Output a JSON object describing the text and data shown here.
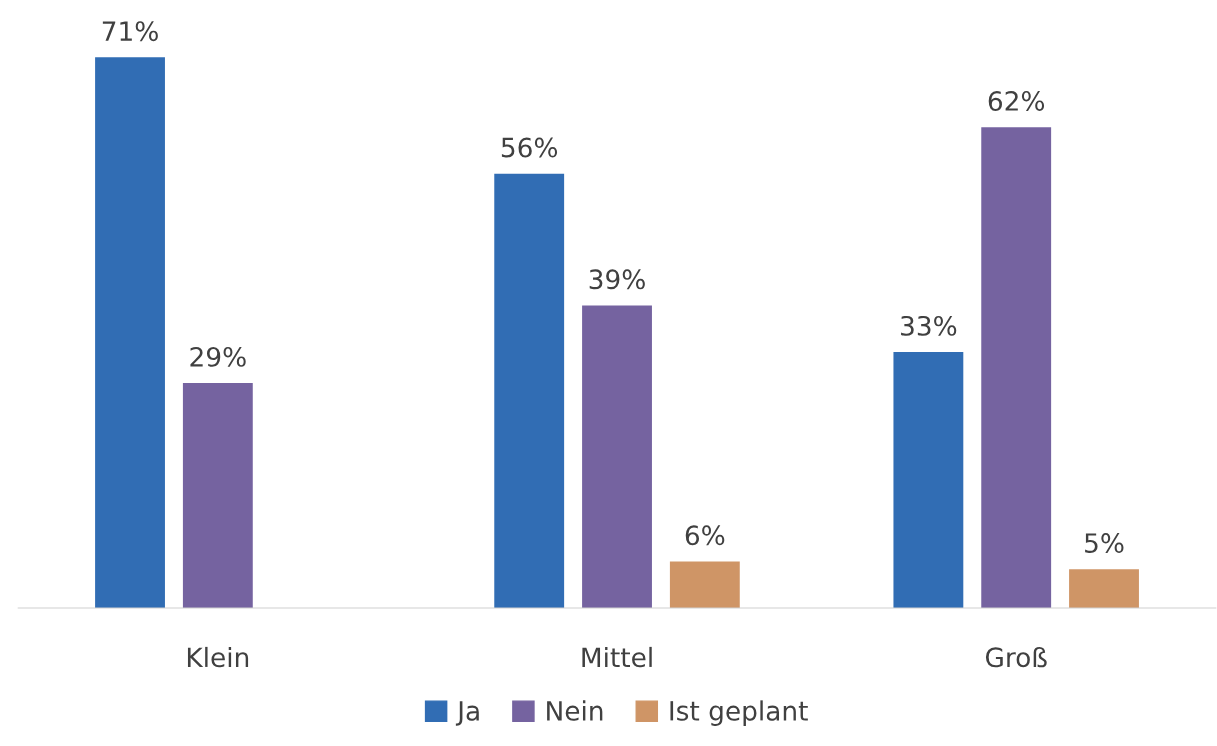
{
  "chart_data": {
    "type": "bar",
    "categories": [
      "Klein",
      "Mittel",
      "Groß"
    ],
    "series": [
      {
        "name": "Ja",
        "color": "#316db4",
        "values": [
          71,
          56,
          33
        ],
        "value_labels": [
          "71%",
          "56%",
          "33%"
        ]
      },
      {
        "name": "Nein",
        "color": "#7563a0",
        "values": [
          29,
          39,
          62
        ],
        "value_labels": [
          "29%",
          "39%",
          "62%"
        ]
      },
      {
        "name": "Ist geplant",
        "color": "#cf9566",
        "values": [
          null,
          6,
          5
        ],
        "value_labels": [
          null,
          "6%",
          "5%"
        ]
      }
    ],
    "legend": "bottom",
    "grid": false
  }
}
